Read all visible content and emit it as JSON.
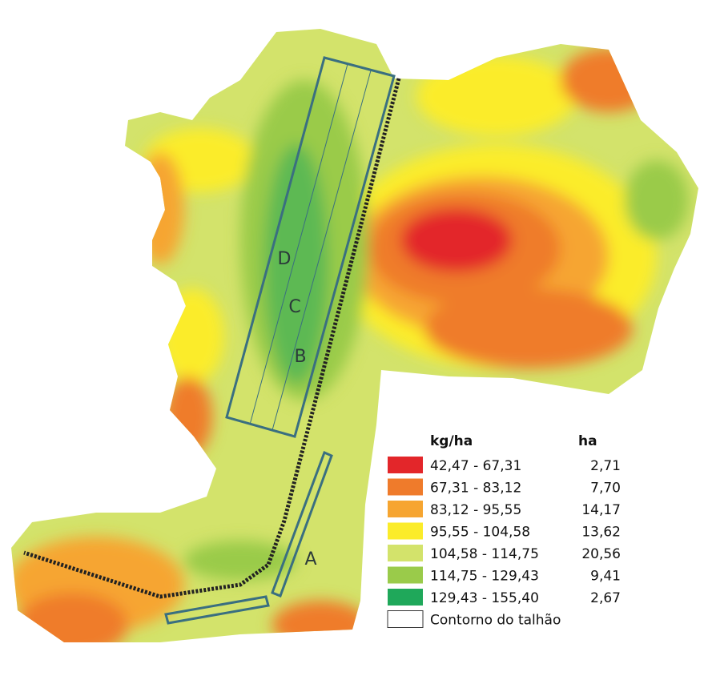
{
  "map": {
    "labels": [
      "D",
      "C",
      "B",
      "A"
    ],
    "legend": {
      "header": {
        "unit": "kg/ha",
        "area": "ha"
      },
      "items": [
        {
          "range": "42,47 - 67,31",
          "area": "2,71",
          "color": "#e3262a"
        },
        {
          "range": "67,31 - 83,12",
          "area": "7,70",
          "color": "#ef7b2b"
        },
        {
          "range": "83,12 - 95,55",
          "area": "14,17",
          "color": "#f6a531"
        },
        {
          "range": "95,55 - 104,58",
          "area": "13,62",
          "color": "#fbec2a"
        },
        {
          "range": "104,58 - 114,75",
          "area": "20,56",
          "color": "#d3e36b"
        },
        {
          "range": "114,75 - 129,43",
          "area": "9,41",
          "color": "#9acb4a"
        },
        {
          "range": "129,43 - 155,40",
          "area": "2,67",
          "color": "#1fa85a"
        }
      ],
      "outline": "Contorno do talhão"
    }
  }
}
